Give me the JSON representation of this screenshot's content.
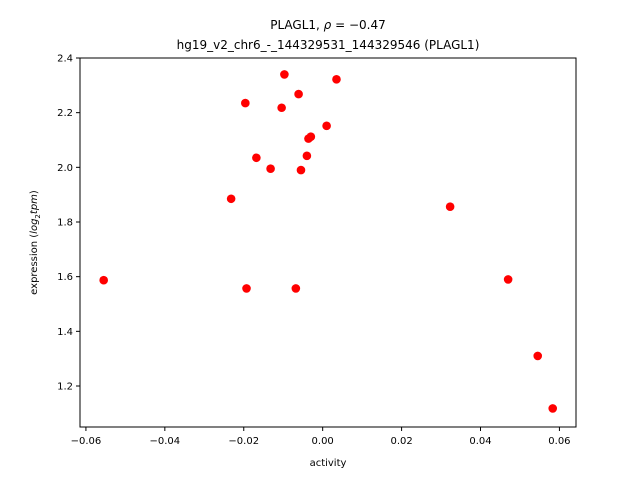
{
  "chart_data": {
    "type": "scatter",
    "title_line1_prefix": "PLAGL1, ",
    "title_line1_rho": "ρ",
    "title_line1_suffix": " = −0.47",
    "title_line2": "hg19_v2_chr6_-_144329531_144329546 (PLAGL1)",
    "xlabel": "activity",
    "ylabel_prefix": "expression (",
    "ylabel_log": "log",
    "ylabel_sub": "2",
    "ylabel_tpm": "tpm",
    "ylabel_suffix": ")",
    "xlim": [
      -0.0615,
      0.0642
    ],
    "ylim": [
      1.05,
      2.4
    ],
    "xticks": [
      -0.06,
      -0.04,
      -0.02,
      0.0,
      0.02,
      0.04,
      0.06
    ],
    "xtick_labels": [
      "−0.06",
      "−0.04",
      "−0.02",
      "0.00",
      "0.02",
      "0.04",
      "0.06"
    ],
    "yticks": [
      1.2,
      1.4,
      1.6,
      1.8,
      2.0,
      2.2,
      2.4
    ],
    "ytick_labels": [
      "1.2",
      "1.4",
      "1.6",
      "1.8",
      "2.0",
      "2.2",
      "2.4"
    ],
    "grid": false,
    "marker_color": "#ff0000",
    "points": [
      {
        "x": -0.0555,
        "y": 1.587
      },
      {
        "x": -0.0232,
        "y": 1.885
      },
      {
        "x": -0.0196,
        "y": 2.235
      },
      {
        "x": -0.0193,
        "y": 1.557
      },
      {
        "x": -0.0168,
        "y": 2.035
      },
      {
        "x": -0.0132,
        "y": 1.995
      },
      {
        "x": -0.0104,
        "y": 2.218
      },
      {
        "x": -0.0097,
        "y": 2.34
      },
      {
        "x": -0.0068,
        "y": 1.557
      },
      {
        "x": -0.0061,
        "y": 2.268
      },
      {
        "x": -0.0055,
        "y": 1.99
      },
      {
        "x": -0.004,
        "y": 2.042
      },
      {
        "x": -0.0036,
        "y": 2.105
      },
      {
        "x": -0.003,
        "y": 2.112
      },
      {
        "x": 0.001,
        "y": 2.152
      },
      {
        "x": 0.0035,
        "y": 2.322
      },
      {
        "x": 0.0323,
        "y": 1.856
      },
      {
        "x": 0.047,
        "y": 1.59
      },
      {
        "x": 0.0545,
        "y": 1.31
      },
      {
        "x": 0.0583,
        "y": 1.118
      }
    ]
  }
}
